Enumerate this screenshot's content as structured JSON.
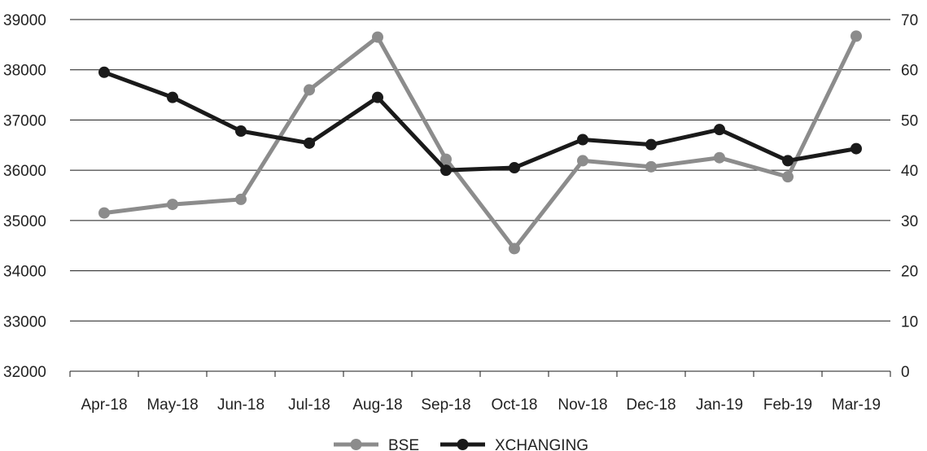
{
  "chart_data": {
    "type": "line",
    "categories": [
      "Apr-18",
      "May-18",
      "Jun-18",
      "Jul-18",
      "Aug-18",
      "Sep-18",
      "Oct-18",
      "Nov-18",
      "Dec-18",
      "Jan-19",
      "Feb-19",
      "Mar-19"
    ],
    "y_left": {
      "ylim": [
        32000,
        39000
      ],
      "ticks": [
        "32000",
        "33000",
        "34000",
        "35000",
        "36000",
        "37000",
        "38000",
        "39000"
      ]
    },
    "y_right": {
      "ylim": [
        0,
        70
      ],
      "ticks": [
        "0",
        "10",
        "20",
        "30",
        "40",
        "50",
        "60",
        "70"
      ]
    },
    "grid": true,
    "legend_position": "bottom",
    "series": [
      {
        "name": "BSE",
        "axis": "left",
        "color": "#8c8c8c",
        "values": [
          35150,
          35320,
          35420,
          37600,
          38650,
          36220,
          34440,
          36190,
          36070,
          36250,
          35870,
          38670
        ]
      },
      {
        "name": "XCHANGING",
        "axis": "right",
        "color": "#1a1a1a",
        "values": [
          59.5,
          54.5,
          47.8,
          45.4,
          54.5,
          40.0,
          40.5,
          46.1,
          45.1,
          48.1,
          41.9,
          44.3
        ]
      }
    ]
  }
}
